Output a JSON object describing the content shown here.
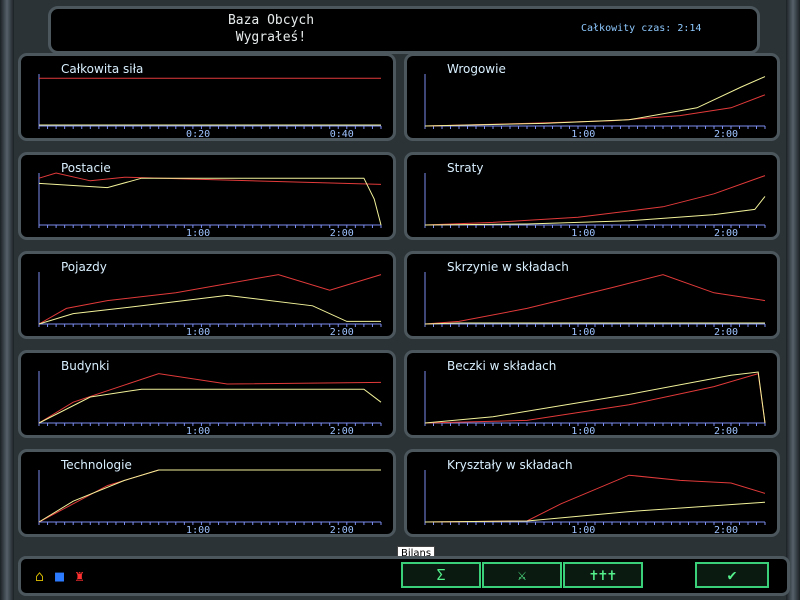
{
  "header": {
    "title1": "Baza Obcych",
    "title2": "Wygrałeś!",
    "time": "Całkowity czas: 2:14"
  },
  "colors": {
    "red": "#e23a3a",
    "yellow": "#f2f29a",
    "axis": "#7b8df0"
  },
  "panels": [
    {
      "title": "Całkowita siła",
      "ticks": [
        "0:20",
        "0:40"
      ],
      "red": [
        [
          0,
          0.92
        ],
        [
          1,
          0.92
        ]
      ],
      "yellow": [
        [
          0,
          0.02
        ],
        [
          1,
          0.02
        ]
      ]
    },
    {
      "title": "Wrogowie",
      "ticks": [
        "1:00",
        "2:00"
      ],
      "red": [
        [
          0,
          0
        ],
        [
          0.3,
          0.05
        ],
        [
          0.55,
          0.1
        ],
        [
          0.75,
          0.2
        ],
        [
          0.9,
          0.35
        ],
        [
          1,
          0.6
        ]
      ],
      "yellow": [
        [
          0,
          0
        ],
        [
          0.35,
          0.05
        ],
        [
          0.6,
          0.12
        ],
        [
          0.8,
          0.35
        ],
        [
          0.93,
          0.75
        ],
        [
          1,
          0.95
        ]
      ]
    },
    {
      "title": "Postacie",
      "ticks": [
        "1:00",
        "2:00"
      ],
      "red": [
        [
          0,
          0.9
        ],
        [
          0.05,
          1
        ],
        [
          0.15,
          0.85
        ],
        [
          0.25,
          0.92
        ],
        [
          1,
          0.78
        ]
      ],
      "yellow": [
        [
          0,
          0.8
        ],
        [
          0.2,
          0.72
        ],
        [
          0.3,
          0.9
        ],
        [
          0.95,
          0.9
        ],
        [
          0.98,
          0.5
        ],
        [
          1,
          0
        ]
      ]
    },
    {
      "title": "Straty",
      "ticks": [
        "1:00",
        "2:00"
      ],
      "red": [
        [
          0,
          0
        ],
        [
          0.2,
          0.05
        ],
        [
          0.45,
          0.15
        ],
        [
          0.7,
          0.35
        ],
        [
          0.85,
          0.6
        ],
        [
          1,
          0.95
        ]
      ],
      "yellow": [
        [
          0,
          0
        ],
        [
          0.3,
          0.02
        ],
        [
          0.6,
          0.08
        ],
        [
          0.85,
          0.2
        ],
        [
          0.97,
          0.3
        ],
        [
          1,
          0.55
        ]
      ]
    },
    {
      "title": "Pojazdy",
      "ticks": [
        "1:00",
        "2:00"
      ],
      "red": [
        [
          0,
          0
        ],
        [
          0.08,
          0.3
        ],
        [
          0.2,
          0.45
        ],
        [
          0.4,
          0.6
        ],
        [
          0.7,
          0.95
        ],
        [
          0.85,
          0.65
        ],
        [
          1,
          0.95
        ]
      ],
      "yellow": [
        [
          0,
          0
        ],
        [
          0.1,
          0.2
        ],
        [
          0.3,
          0.35
        ],
        [
          0.55,
          0.55
        ],
        [
          0.8,
          0.35
        ],
        [
          0.9,
          0.05
        ],
        [
          1,
          0.05
        ]
      ]
    },
    {
      "title": "Skrzynie w składach",
      "ticks": [
        "1:00",
        "2:00"
      ],
      "red": [
        [
          0,
          0
        ],
        [
          0.1,
          0.05
        ],
        [
          0.3,
          0.3
        ],
        [
          0.55,
          0.7
        ],
        [
          0.7,
          0.95
        ],
        [
          0.85,
          0.6
        ],
        [
          1,
          0.45
        ]
      ],
      "yellow": [
        [
          0,
          0
        ],
        [
          0.1,
          0.02
        ],
        [
          0.5,
          0.02
        ],
        [
          1,
          0.02
        ]
      ]
    },
    {
      "title": "Budynki",
      "ticks": [
        "1:00",
        "2:00"
      ],
      "red": [
        [
          0,
          0
        ],
        [
          0.1,
          0.4
        ],
        [
          0.35,
          0.95
        ],
        [
          0.55,
          0.75
        ],
        [
          1,
          0.78
        ]
      ],
      "yellow": [
        [
          0,
          0
        ],
        [
          0.15,
          0.5
        ],
        [
          0.3,
          0.65
        ],
        [
          0.95,
          0.65
        ],
        [
          1,
          0.4
        ]
      ]
    },
    {
      "title": "Beczki w składach",
      "ticks": [
        "1:00",
        "2:00"
      ],
      "red": [
        [
          0,
          0
        ],
        [
          0.3,
          0.05
        ],
        [
          0.6,
          0.35
        ],
        [
          0.85,
          0.7
        ],
        [
          0.98,
          0.95
        ],
        [
          1,
          0
        ]
      ],
      "yellow": [
        [
          0,
          0
        ],
        [
          0.2,
          0.12
        ],
        [
          0.6,
          0.55
        ],
        [
          0.9,
          0.92
        ],
        [
          0.98,
          0.98
        ],
        [
          1,
          0
        ]
      ]
    },
    {
      "title": "Technologie",
      "ticks": [
        "1:00",
        "2:00"
      ],
      "red": [
        [
          0,
          0
        ],
        [
          0.1,
          0.35
        ],
        [
          0.2,
          0.7
        ],
        [
          0.35,
          1
        ],
        [
          1,
          1
        ]
      ],
      "yellow": [
        [
          0,
          0
        ],
        [
          0.1,
          0.4
        ],
        [
          0.25,
          0.8
        ],
        [
          0.35,
          1
        ],
        [
          1,
          1
        ]
      ]
    },
    {
      "title": "Kryształy w składach",
      "ticks": [
        "1:00",
        "2:00"
      ],
      "red": [
        [
          0,
          0
        ],
        [
          0.3,
          0.02
        ],
        [
          0.4,
          0.35
        ],
        [
          0.6,
          0.9
        ],
        [
          0.75,
          0.8
        ],
        [
          0.9,
          0.75
        ],
        [
          1,
          0.55
        ]
      ],
      "yellow": [
        [
          0,
          0
        ],
        [
          0.3,
          0.02
        ],
        [
          0.6,
          0.2
        ],
        [
          1,
          0.38
        ]
      ]
    }
  ],
  "bottom": {
    "tooltip": "Bilans",
    "btn1": "Σ",
    "btn2": "⚔",
    "btn3": "✝✝✝",
    "ok": "✔"
  }
}
